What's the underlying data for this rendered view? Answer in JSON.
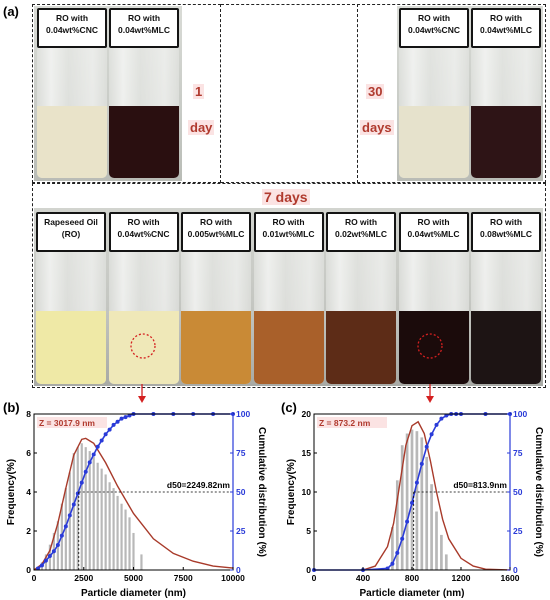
{
  "panels": {
    "a": "(a)",
    "b": "(b)",
    "c": "(c)"
  },
  "top": {
    "label_1day": [
      "1",
      "day"
    ],
    "label_30days": [
      "30",
      "days"
    ],
    "left_vials": [
      {
        "line1": "RO with",
        "line2": "0.04wt%CNC",
        "liquid": "#e9e3c9"
      },
      {
        "line1": "RO with",
        "line2": "0.04wt%MLC",
        "liquid": "#2a0f10"
      }
    ],
    "right_vials": [
      {
        "line1": "RO with",
        "line2": "0.04wt%CNC",
        "liquid": "#e6e2cc"
      },
      {
        "line1": "RO with",
        "line2": "0.04wt%MLC",
        "liquid": "#2e1416"
      }
    ]
  },
  "middle": {
    "title": "7 days",
    "vials": [
      {
        "line1": "Rapeseed Oil",
        "line2": "(RO)",
        "liquid": "#efe9a6"
      },
      {
        "line1": "RO with",
        "line2": "0.04wt%CNC",
        "liquid": "#efe8b8"
      },
      {
        "line1": "RO with",
        "line2": "0.005wt%MLC",
        "liquid": "#c98a36"
      },
      {
        "line1": "RO with",
        "line2": "0.01wt%MLC",
        "liquid": "#a9602a"
      },
      {
        "line1": "RO with",
        "line2": "0.02wt%MLC",
        "liquid": "#5d2c17"
      },
      {
        "line1": "RO with",
        "line2": "0.04wt%MLC",
        "liquid": "#1b0b0b"
      },
      {
        "line1": "RO with",
        "line2": "0.08wt%MLC",
        "liquid": "#1d1414"
      }
    ]
  },
  "colors": {
    "dist_curve": "#a83a2a",
    "cumulative": "#2a3bd8",
    "bars": "#b8b8b8",
    "z_text": "#b03a2e"
  },
  "chart_data": [
    {
      "type": "bar",
      "panel": "(b)",
      "xlabel": "Particle diameter (nm)",
      "ylabel": "Frequency(%)",
      "y2label": "Cumulative distribution (%)",
      "xlim": [
        0,
        10000
      ],
      "ylim": [
        0,
        8
      ],
      "y2lim": [
        0,
        100
      ],
      "xticks": [
        "0",
        "2500",
        "5000",
        "7500",
        "10000"
      ],
      "yticks": [
        "0",
        "2",
        "4",
        "6",
        "8"
      ],
      "y2ticks": [
        "0",
        "25",
        "50",
        "75",
        "100"
      ],
      "z_annotation": "Z = 3017.9 nm",
      "d50_annotation": "d50=2249.82nm",
      "d50_value": 2249.82,
      "histogram": {
        "x": [
          400,
          600,
          800,
          1000,
          1200,
          1400,
          1600,
          1800,
          2000,
          2200,
          2400,
          2600,
          2800,
          3000,
          3200,
          3400,
          3600,
          3800,
          4000,
          4200,
          4400,
          4600,
          4800,
          5000,
          5400
        ],
        "values": [
          0.4,
          0.8,
          1.3,
          1.9,
          2.5,
          3.4,
          4.2,
          5.0,
          6.0,
          6.3,
          6.5,
          6.3,
          6.1,
          5.8,
          5.5,
          5.2,
          4.9,
          4.5,
          4.2,
          3.8,
          3.4,
          3.1,
          2.7,
          1.9,
          0.8
        ]
      },
      "fit_curve": {
        "x": [
          0,
          400,
          800,
          1200,
          1600,
          2000,
          2400,
          2600,
          3000,
          3600,
          4200,
          5000,
          6000,
          7000,
          8000,
          9000,
          10000
        ],
        "values": [
          0,
          0.3,
          1.0,
          2.4,
          4.2,
          5.9,
          6.7,
          6.75,
          6.5,
          5.5,
          4.3,
          2.9,
          1.6,
          0.85,
          0.45,
          0.2,
          0.1
        ]
      },
      "cumulative": {
        "x": [
          200,
          400,
          600,
          800,
          1000,
          1200,
          1400,
          1600,
          1800,
          2000,
          2200,
          2400,
          2600,
          2800,
          3000,
          3200,
          3400,
          3600,
          3800,
          4000,
          4200,
          4400,
          4600,
          4800,
          5000,
          6000,
          7000,
          8000,
          9000,
          10000
        ],
        "values": [
          1,
          3,
          6,
          9,
          12,
          16,
          22,
          28,
          35,
          42,
          49,
          56,
          63,
          69,
          74,
          79,
          83,
          87,
          90,
          93,
          95,
          97,
          98,
          99,
          100,
          100,
          100,
          100,
          100,
          100
        ]
      }
    },
    {
      "type": "bar",
      "panel": "(c)",
      "xlabel": "Particle diameter (nm)",
      "ylabel": "Frequency(%)",
      "y2label": "Cumulative distribution (%)",
      "xlim": [
        0,
        1600
      ],
      "ylim": [
        0,
        20
      ],
      "y2lim": [
        0,
        100
      ],
      "xticks": [
        "0",
        "400",
        "800",
        "1200",
        "1600"
      ],
      "yticks": [
        "0",
        "5",
        "10",
        "15",
        "20"
      ],
      "y2ticks": [
        "0",
        "25",
        "50",
        "75",
        "100"
      ],
      "z_annotation": "Z = 873.2 nm",
      "d50_annotation": "d50=813.9nm",
      "d50_value": 813.9,
      "histogram": {
        "x": [
          640,
          680,
          720,
          760,
          800,
          840,
          880,
          920,
          960,
          1000,
          1040,
          1080
        ],
        "values": [
          5.5,
          11.5,
          16.0,
          17.5,
          18.0,
          17.8,
          17.0,
          14.5,
          11.0,
          7.5,
          4.5,
          2.0
        ]
      },
      "fit_curve": {
        "x": [
          400,
          500,
          600,
          650,
          700,
          750,
          800,
          850,
          900,
          950,
          1000,
          1050,
          1100,
          1200,
          1300,
          1400,
          1600
        ],
        "values": [
          0,
          0.5,
          3.0,
          6.0,
          11.0,
          16.0,
          18.5,
          19.0,
          17.5,
          14.0,
          10.0,
          6.5,
          4.0,
          1.5,
          0.5,
          0.1,
          0
        ]
      },
      "cumulative": {
        "x": [
          0,
          400,
          600,
          640,
          680,
          720,
          760,
          800,
          840,
          880,
          920,
          960,
          1000,
          1040,
          1080,
          1120,
          1160,
          1200,
          1400,
          1600
        ],
        "values": [
          0,
          0,
          1,
          4,
          11,
          20,
          31,
          43,
          56,
          68,
          79,
          87,
          93,
          97,
          99,
          100,
          100,
          100,
          100,
          100
        ]
      }
    }
  ]
}
